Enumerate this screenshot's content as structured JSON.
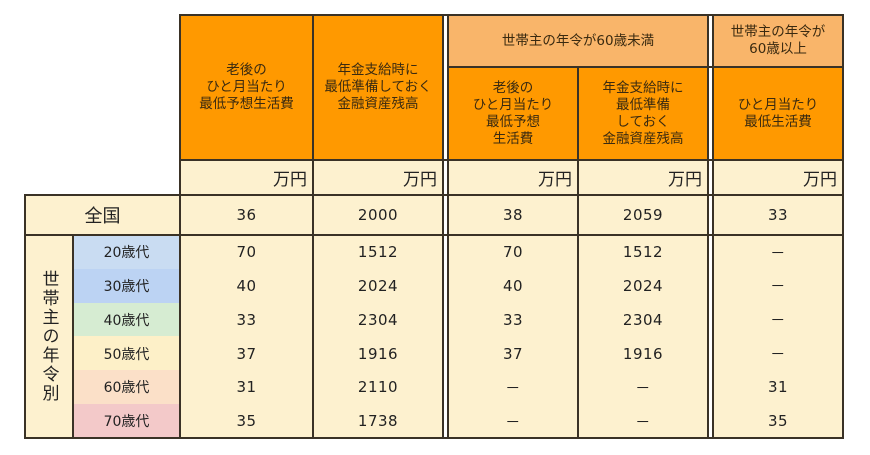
{
  "table": {
    "col_headers": {
      "all_ages_group": [
        "老後の\nひと月当たり\n最低予想生活費",
        "年金支給時に\n最低準備しておく\n金融資産残高"
      ],
      "under60_group_label": "世帯主の年令が60歳未満",
      "under60_cols": [
        "老後の\nひと月当たり\n最低予想\n生活費",
        "年金支給時に\n最低準備\nしておく\n金融資産残高"
      ],
      "over60_group_label": "世帯主の年令が\n60歳以上",
      "over60_cols": [
        "ひと月当たり\n最低生活費"
      ]
    },
    "unit": "万円",
    "national_label": "全国",
    "national_values": [
      "36",
      "2000",
      "38",
      "2059",
      "33"
    ],
    "row_group_label": "世帯主の年令別",
    "rows": [
      {
        "label": "20歳代",
        "color": "#c9dcf2",
        "values": [
          "70",
          "1512",
          "70",
          "1512",
          "－"
        ]
      },
      {
        "label": "30歳代",
        "color": "#bcd3f3",
        "values": [
          "40",
          "2024",
          "40",
          "2024",
          "－"
        ]
      },
      {
        "label": "40歳代",
        "color": "#d6ecd2",
        "values": [
          "33",
          "2304",
          "33",
          "2304",
          "－"
        ]
      },
      {
        "label": "50歳代",
        "color": "#fdf0c8",
        "values": [
          "37",
          "1916",
          "37",
          "1916",
          "－"
        ]
      },
      {
        "label": "60歳代",
        "color": "#fbe0c8",
        "values": [
          "31",
          "2110",
          "－",
          "－",
          "31"
        ]
      },
      {
        "label": "70歳代",
        "color": "#f3c9c9",
        "values": [
          "35",
          "1738",
          "－",
          "－",
          "35"
        ]
      }
    ]
  },
  "colors": {
    "header_dark": "#ff9900",
    "header_light": "#f9b56a",
    "cream": "#fdf1cf",
    "border": "#3a3226"
  }
}
